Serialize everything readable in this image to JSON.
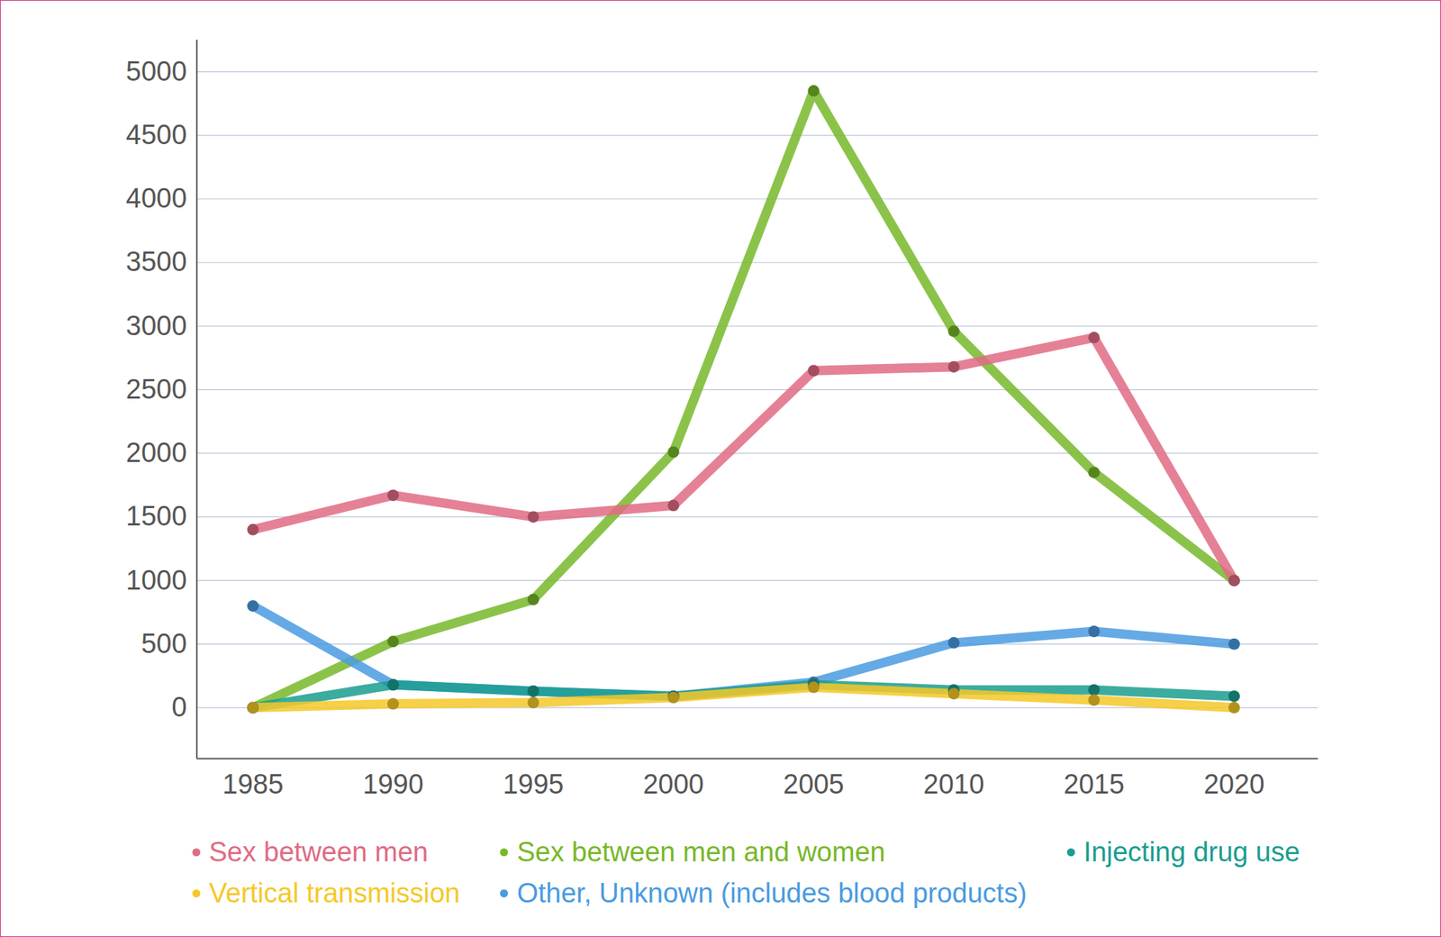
{
  "chart_data": {
    "type": "line",
    "x": [
      1985,
      1990,
      1995,
      2000,
      2005,
      2010,
      2015,
      2020
    ],
    "xlim": [
      1983,
      2023
    ],
    "xticks": [
      1985,
      1990,
      1995,
      2000,
      2005,
      2010,
      2015,
      2020
    ],
    "ylim": [
      -400,
      5250
    ],
    "yticks": [
      0,
      500,
      1000,
      1500,
      2000,
      2500,
      3000,
      3500,
      4000,
      4500,
      5000
    ],
    "grid": true,
    "legend": "bottom",
    "marker": "circle",
    "series": [
      {
        "name": "Sex between men",
        "color": "#e06b84",
        "values": [
          1400,
          1670,
          1500,
          1590,
          2650,
          2680,
          2910,
          1000
        ]
      },
      {
        "name": "Sex between men and women",
        "color": "#77b82a",
        "values": [
          0,
          520,
          850,
          2010,
          4850,
          2960,
          1850,
          1000
        ]
      },
      {
        "name": "Injecting drug use",
        "color": "#1a9e8f",
        "values": [
          0,
          180,
          130,
          90,
          180,
          140,
          140,
          90
        ]
      },
      {
        "name": "Vertical transmission",
        "color": "#f5c828",
        "values": [
          0,
          30,
          40,
          80,
          160,
          110,
          60,
          0
        ]
      },
      {
        "name": "Other, Unknown (includes blood products)",
        "color": "#4a9be0",
        "values": [
          800,
          180,
          130,
          90,
          200,
          510,
          600,
          500
        ]
      }
    ]
  }
}
